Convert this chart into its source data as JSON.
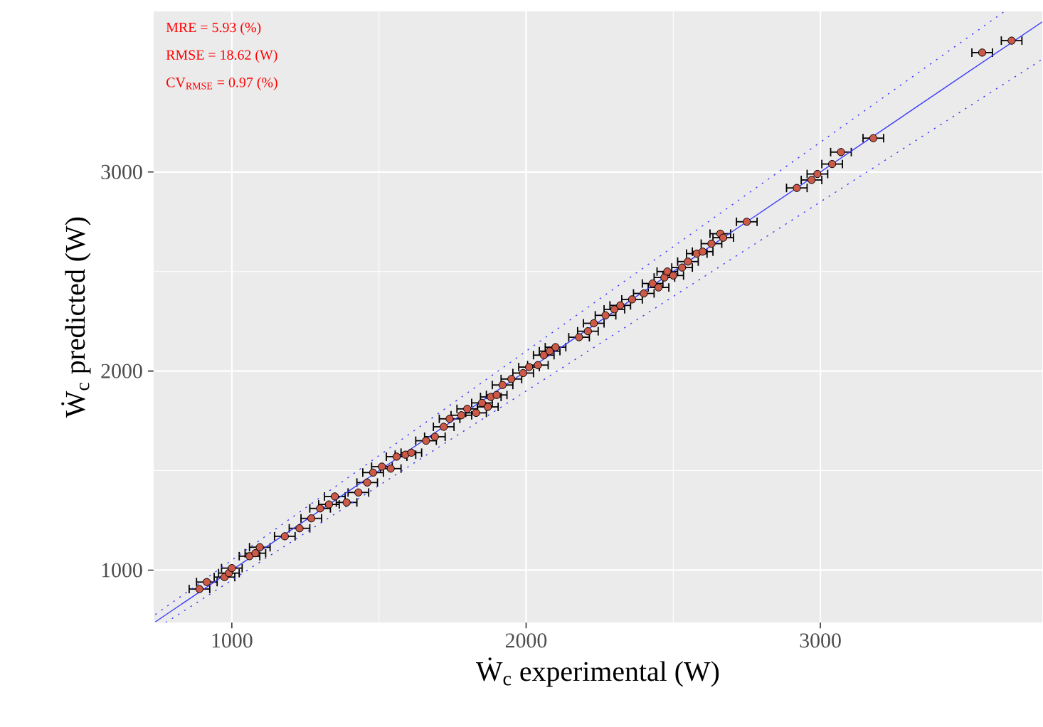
{
  "chart_data": {
    "type": "scatter",
    "xlabel": "Ẇ$_{c}$ experimental (W)",
    "ylabel": "Ẇ$_{c}$ predicted (W)",
    "annotations": [
      "MRE = 5.93 (%)",
      "RMSE = 18.62 (W)",
      "CV$_{RMSE}$ = 0.97 (%)"
    ],
    "xlim": [
      734,
      3754
    ],
    "ylim": [
      736,
      3807
    ],
    "xticks": [
      1000,
      2000,
      3000
    ],
    "yticks": [
      1000,
      2000,
      3000
    ],
    "grid": true,
    "series": [
      {
        "color": "#cd5a48",
        "marker": "circle",
        "x": [
          890,
          915,
          975,
          990,
          1000,
          1060,
          1080,
          1095,
          1180,
          1230,
          1270,
          1300,
          1330,
          1350,
          1390,
          1430,
          1460,
          1480,
          1510,
          1540,
          1560,
          1590,
          1610,
          1660,
          1690,
          1720,
          1740,
          1780,
          1800,
          1830,
          1850,
          1870,
          1880,
          1900,
          1920,
          1950,
          1990,
          2010,
          2040,
          2060,
          2080,
          2100,
          2180,
          2210,
          2230,
          2270,
          2300,
          2320,
          2360,
          2400,
          2430,
          2450,
          2470,
          2480,
          2500,
          2530,
          2550,
          2580,
          2600,
          2630,
          2660,
          2670,
          2750,
          2920,
          2970,
          2990,
          3040,
          3070,
          3180,
          3550,
          3650
        ],
        "values": [
          905,
          940,
          965,
          985,
          1010,
          1070,
          1085,
          1115,
          1170,
          1210,
          1260,
          1310,
          1330,
          1370,
          1340,
          1390,
          1440,
          1490,
          1520,
          1510,
          1570,
          1580,
          1590,
          1650,
          1670,
          1720,
          1760,
          1778,
          1810,
          1790,
          1840,
          1820,
          1870,
          1880,
          1930,
          1960,
          1990,
          2020,
          2030,
          2080,
          2100,
          2120,
          2170,
          2200,
          2240,
          2280,
          2310,
          2330,
          2360,
          2390,
          2440,
          2420,
          2470,
          2500,
          2480,
          2520,
          2550,
          2590,
          2600,
          2640,
          2690,
          2670,
          2750,
          2920,
          2960,
          2990,
          3040,
          3100,
          3170,
          3600,
          3660
        ],
        "xerrors": [
          35,
          35,
          35,
          35,
          35,
          35,
          35,
          35,
          35,
          35,
          35,
          35,
          35,
          35,
          35,
          35,
          35,
          35,
          35,
          35,
          35,
          35,
          35,
          35,
          35,
          35,
          35,
          35,
          35,
          35,
          35,
          35,
          35,
          35,
          35,
          35,
          35,
          35,
          35,
          35,
          35,
          35,
          35,
          35,
          35,
          35,
          35,
          35,
          35,
          35,
          35,
          35,
          35,
          35,
          35,
          35,
          35,
          35,
          35,
          35,
          35,
          35,
          35,
          35,
          35,
          35,
          35,
          35,
          35,
          35,
          35
        ]
      },
      {
        "type": "line",
        "color": "#3838ff",
        "line_style": "solid",
        "marker": "none",
        "x": [
          740,
          3754
        ],
        "values": [
          740,
          3754
        ]
      },
      {
        "type": "line",
        "color": "#3838ff",
        "line_style": "dotted",
        "marker": "none",
        "x": [
          740,
          3626
        ],
        "values": [
          777,
          3807
        ]
      },
      {
        "type": "line",
        "color": "#3838ff",
        "line_style": "dotted",
        "marker": "none",
        "x": [
          775,
          3754
        ],
        "values": [
          736,
          3566
        ]
      }
    ]
  }
}
